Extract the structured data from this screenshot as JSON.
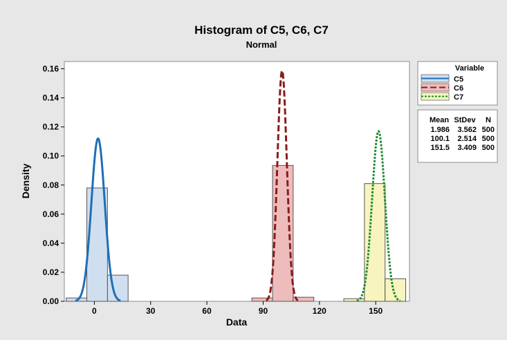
{
  "chart_data": {
    "type": "histogram",
    "title": "Histogram of C5, C6, C7",
    "subtitle": "Normal",
    "xlabel": "Data",
    "ylabel": "Density",
    "xlim": [
      -16,
      168
    ],
    "ylim": [
      0,
      0.165
    ],
    "xticks": [
      "0",
      "30",
      "60",
      "90",
      "120",
      "150"
    ],
    "xtick_values": [
      0,
      30,
      60,
      90,
      120,
      150
    ],
    "yticks": [
      "0.00",
      "0.02",
      "0.04",
      "0.06",
      "0.08",
      "0.10",
      "0.12",
      "0.14",
      "0.16"
    ],
    "ytick_values": [
      0,
      0.02,
      0.04,
      0.06,
      0.08,
      0.1,
      0.12,
      0.14,
      0.16
    ],
    "bin_width": 11,
    "series": [
      {
        "name": "C5",
        "fill": "#cfdff0",
        "line_color": "#1f6eb4",
        "line_style": "solid",
        "bins": [
          {
            "left": -15,
            "density": 0.0023
          },
          {
            "left": -4,
            "density": 0.078
          },
          {
            "left": 7,
            "density": 0.018
          }
        ],
        "mean": 1.986,
        "stdev": 3.562,
        "n": 500
      },
      {
        "name": "C6",
        "fill": "#efbcbd",
        "line_color": "#8b1a1a",
        "line_style": "dashed",
        "bins": [
          {
            "left": 84,
            "density": 0.0023
          },
          {
            "left": 95,
            "density": 0.0935
          },
          {
            "left": 106,
            "density": 0.0028
          }
        ],
        "mean": 100.1,
        "stdev": 2.514,
        "n": 500
      },
      {
        "name": "C7",
        "fill": "#f8f4bf",
        "line_color": "#1e8a2e",
        "line_style": "dotted",
        "bins": [
          {
            "left": 133,
            "density": 0.0018
          },
          {
            "left": 144,
            "density": 0.081
          },
          {
            "left": 155,
            "density": 0.0155
          }
        ],
        "mean": 151.5,
        "stdev": 3.409,
        "n": 500
      }
    ],
    "legend": {
      "title": "Variable",
      "stats_headers": [
        "Mean",
        "StDev",
        "N"
      ],
      "stats_rows": [
        [
          "1.986",
          "3.562",
          "500"
        ],
        [
          "100.1",
          "2.514",
          "500"
        ],
        [
          "151.5",
          "3.409",
          "500"
        ]
      ],
      "placement": "right"
    },
    "grid": false
  },
  "colors": {
    "background": "#e7e7e7",
    "plot_background": "#ffffff",
    "bar_outline": "#555555"
  }
}
